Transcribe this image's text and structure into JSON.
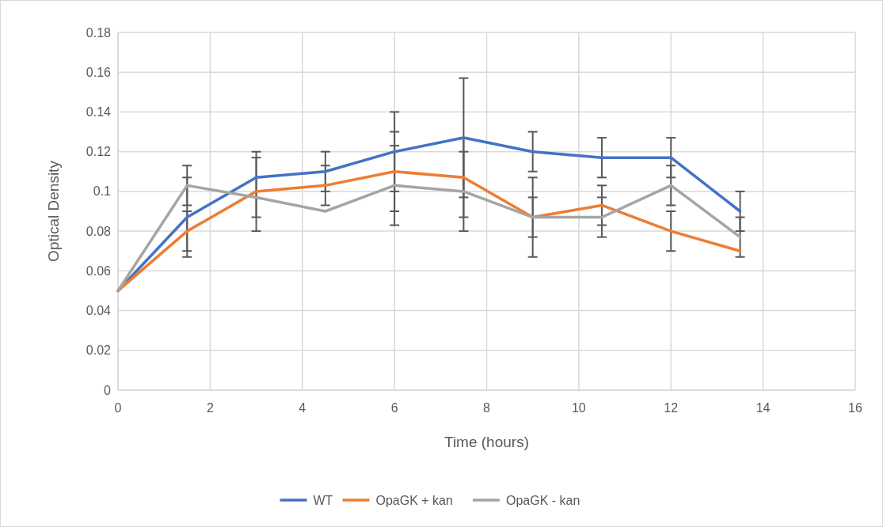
{
  "chart_data": {
    "type": "line",
    "xlabel": "Time (hours)",
    "ylabel": "Optical Density",
    "x": [
      0,
      1.5,
      3,
      4.5,
      6,
      7.5,
      9,
      10.5,
      12,
      13.5
    ],
    "series": [
      {
        "name": "WT",
        "color": "#4472c4",
        "values": [
          0.05,
          0.087,
          0.107,
          0.11,
          0.12,
          0.127,
          0.12,
          0.117,
          0.117,
          0.09
        ],
        "errors": [
          null,
          0.02,
          null,
          0.01,
          0.02,
          0.03,
          0.01,
          0.01,
          0.01,
          0.01
        ]
      },
      {
        "name": "OpaGK + kan",
        "color": "#ed7d31",
        "values": [
          0.05,
          0.08,
          0.1,
          0.103,
          0.11,
          0.107,
          0.087,
          0.093,
          0.08,
          0.07
        ],
        "errors": [
          null,
          0.01,
          0.02,
          0.01,
          0.02,
          0.02,
          0.02,
          0.01,
          0.01,
          null
        ]
      },
      {
        "name": "OpaGK - kan",
        "color": "#a5a5a5",
        "values": [
          0.05,
          0.103,
          0.097,
          0.09,
          0.103,
          0.1,
          0.087,
          0.087,
          0.103,
          0.077
        ],
        "errors": [
          null,
          0.01,
          [
            0.087,
            0.117
          ],
          null,
          0.02,
          0.02,
          0.01,
          0.01,
          0.01,
          0.01
        ]
      }
    ],
    "xlim": [
      0,
      16
    ],
    "xticks": [
      0,
      2,
      4,
      6,
      8,
      10,
      12,
      14,
      16
    ],
    "ylim": [
      0,
      0.18
    ],
    "yticks": [
      0,
      0.02,
      0.04,
      0.06,
      0.08,
      0.1,
      0.12,
      0.14,
      0.16,
      0.18
    ],
    "grid": true,
    "legend": "bottom",
    "marker": "none",
    "line_style": "solid"
  }
}
